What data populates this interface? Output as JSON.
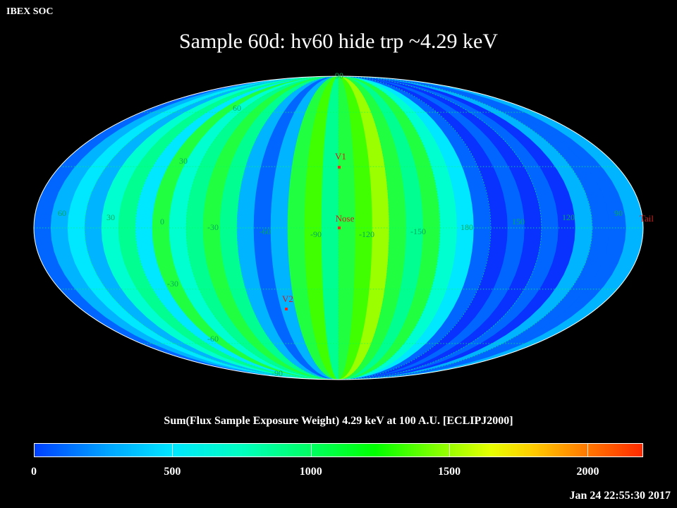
{
  "header": {
    "corner_label": "IBEX SOC",
    "title": "Sample 60d: hv60 hide trp ~4.29 keV"
  },
  "map": {
    "projection": "Mollweide",
    "grid_labels": {
      "longitude": [
        "60",
        "30",
        "0",
        "-30",
        "-60",
        "-90",
        "-120",
        "-150",
        "180",
        "150",
        "120",
        "90"
      ],
      "latitude": [
        "90",
        "60",
        "30",
        "-30",
        "-60",
        "-90"
      ]
    },
    "markers": [
      {
        "name": "V1",
        "color": "#ff2020"
      },
      {
        "name": "Nose",
        "color": "#ff2020"
      },
      {
        "name": "V2",
        "color": "#ff2020"
      },
      {
        "name": "Tail",
        "color": "#ff2020"
      }
    ],
    "colors": {
      "grid": "#00ff60",
      "outline": "#ffffff",
      "label": "#00aa60",
      "marker": "#cc2020"
    }
  },
  "colorbar": {
    "label": "Sum(Flux Sample Exposure Weight)  4.29 keV at 100 A.U. [ECLIPJ2000]",
    "ticks": [
      "0",
      "500",
      "1000",
      "1500",
      "2000"
    ],
    "tick_values": [
      0,
      500,
      1000,
      1500,
      2000
    ],
    "max_value": 2200,
    "colormap": [
      "#0040ff",
      "#00a4ff",
      "#00e6ff",
      "#00ffc0",
      "#00ff66",
      "#00ff00",
      "#80ff00",
      "#e6ff00",
      "#ffcc00",
      "#ff8000",
      "#ff2a00"
    ]
  },
  "footer": {
    "timestamp": "Jan 24 22:55:30 2017"
  }
}
